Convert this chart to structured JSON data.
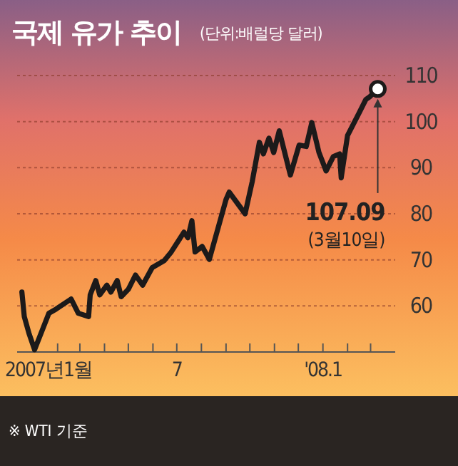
{
  "chart_data": {
    "type": "line",
    "title": "국제 유가 추이",
    "subtitle": "(단위:배럴당 달러)",
    "annotations": [
      {
        "text": "107.09",
        "x": "2008-03-10",
        "y": 107.09
      },
      "(3월10일)",
      "※ WTI 기준"
    ],
    "xlim": [
      "2006-12-12",
      "2008-04-01"
    ],
    "xticks": [
      {
        "value": "2007-01-01",
        "label": "2007년1월"
      },
      {
        "value": "2007-02-01",
        "label": null
      },
      {
        "value": "2007-03-01",
        "label": null
      },
      {
        "value": "2007-04-01",
        "label": null
      },
      {
        "value": "2007-05-01",
        "label": null
      },
      {
        "value": "2007-06-01",
        "label": null
      },
      {
        "value": "2007-07-01",
        "label": "7"
      },
      {
        "value": "2007-08-01",
        "label": null
      },
      {
        "value": "2007-09-01",
        "label": null
      },
      {
        "value": "2007-10-01",
        "label": null
      },
      {
        "value": "2007-11-01",
        "label": null
      },
      {
        "value": "2007-12-01",
        "label": null
      },
      {
        "value": "2008-01-01",
        "label": "'08.1"
      },
      {
        "value": "2008-02-01",
        "label": null
      },
      {
        "value": "2008-03-01",
        "label": null
      }
    ],
    "ylim": [
      50,
      110
    ],
    "yticks": [
      60,
      70,
      80,
      90,
      100,
      110
    ],
    "grid": "y",
    "series": [
      {
        "color": "#1c1a1a",
        "marker": "none",
        "x": [
          "2006-12-18",
          "2006-12-21",
          "2006-12-27",
          "2007-01-03",
          "2007-01-21",
          "2007-01-30",
          "2007-02-18",
          "2007-02-27",
          "2007-03-12",
          "2007-03-14",
          "2007-03-21",
          "2007-03-26",
          "2007-04-04",
          "2007-04-09",
          "2007-04-17",
          "2007-04-22",
          "2007-05-01",
          "2007-05-10",
          "2007-05-19",
          "2007-05-31",
          "2007-06-15",
          "2007-06-24",
          "2007-07-10",
          "2007-07-15",
          "2007-07-20",
          "2007-07-24",
          "2007-08-02",
          "2007-08-11",
          "2007-09-01",
          "2007-09-05",
          "2007-09-25",
          "2007-10-04",
          "2007-10-13",
          "2007-10-18",
          "2007-10-25",
          "2007-10-31",
          "2007-11-07",
          "2007-11-21",
          "2007-12-02",
          "2007-12-11",
          "2007-12-18",
          "2007-12-27",
          "2008-01-05",
          "2008-01-14",
          "2008-01-22",
          "2008-01-24",
          "2008-02-01",
          "2008-02-15",
          "2008-02-24",
          "2008-02-29",
          "2008-03-10"
        ],
        "values": [
          63,
          57.7,
          54,
          50.5,
          58.4,
          59.3,
          61.5,
          58.4,
          57.7,
          62.4,
          65.5,
          62.4,
          64.5,
          63,
          65.5,
          62,
          63.6,
          66.7,
          64.5,
          68.3,
          69.8,
          71.7,
          76,
          74.8,
          78.5,
          71.7,
          72.9,
          70.1,
          83.1,
          84.7,
          80,
          87,
          95.5,
          93,
          96.4,
          93.3,
          98,
          88.4,
          94.9,
          94.6,
          99.8,
          93.3,
          89.3,
          92.4,
          93,
          87.8,
          97,
          101.7,
          104.8,
          105.4,
          107.09
        ]
      },
      {
        "type": "scatter",
        "color": "#ffffff",
        "marker": "circle",
        "x": [
          "2008-03-10"
        ],
        "values": [
          107.09
        ]
      }
    ]
  }
}
